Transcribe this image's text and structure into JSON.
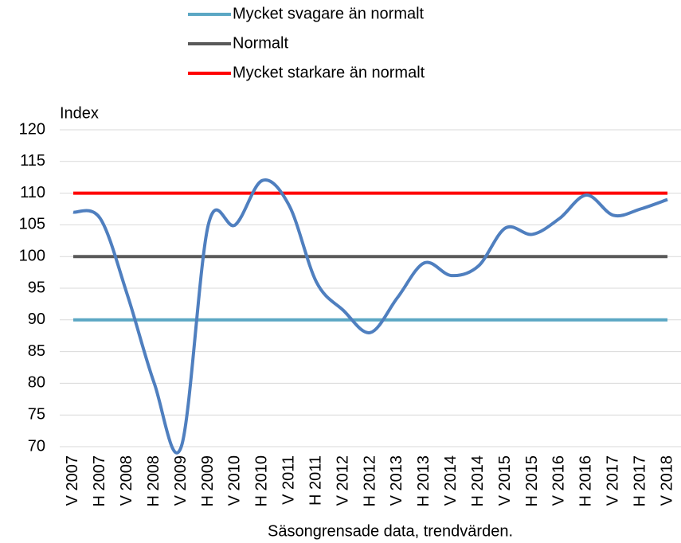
{
  "chart_data": {
    "type": "line",
    "y_label": "Index",
    "x_label": "Säsongrensade data, trendvärden.",
    "categories": [
      "V 2007",
      "H 2007",
      "V 2008",
      "H 2008",
      "V 2009",
      "H 2009",
      "V 2010",
      "H 2010",
      "V 2011",
      "H 2011",
      "V 2012",
      "H 2012",
      "V 2013",
      "H 2013",
      "V 2014",
      "H 2014",
      "V 2015",
      "H 2015",
      "V 2016",
      "H 2016",
      "V 2017",
      "H 2017",
      "V 2018"
    ],
    "series": [
      {
        "name": "Mycket svagare än normalt",
        "color": "#5ba7c4",
        "values": [
          90,
          90,
          90,
          90,
          90,
          90,
          90,
          90,
          90,
          90,
          90,
          90,
          90,
          90,
          90,
          90,
          90,
          90,
          90,
          90,
          90,
          90,
          90
        ]
      },
      {
        "name": "Normalt",
        "color": "#595959",
        "values": [
          100,
          100,
          100,
          100,
          100,
          100,
          100,
          100,
          100,
          100,
          100,
          100,
          100,
          100,
          100,
          100,
          100,
          100,
          100,
          100,
          100,
          100,
          100
        ]
      },
      {
        "name": "Mycket starkare än normalt",
        "color": "#ff0000",
        "values": [
          110,
          110,
          110,
          110,
          110,
          110,
          110,
          110,
          110,
          110,
          110,
          110,
          110,
          110,
          110,
          110,
          110,
          110,
          110,
          110,
          110,
          110,
          110
        ]
      },
      {
        "color": "#4f7fbf",
        "values": [
          107,
          106,
          94,
          80,
          70,
          105,
          105,
          112,
          108,
          96,
          91.5,
          88,
          93.5,
          99,
          97,
          98.5,
          104.5,
          103.5,
          106,
          109.7,
          106.5,
          107.5,
          109
        ]
      }
    ],
    "ylim": [
      70,
      120
    ],
    "yticks": [
      70,
      75,
      80,
      85,
      90,
      95,
      100,
      105,
      110,
      115,
      120
    ],
    "grid": true
  }
}
